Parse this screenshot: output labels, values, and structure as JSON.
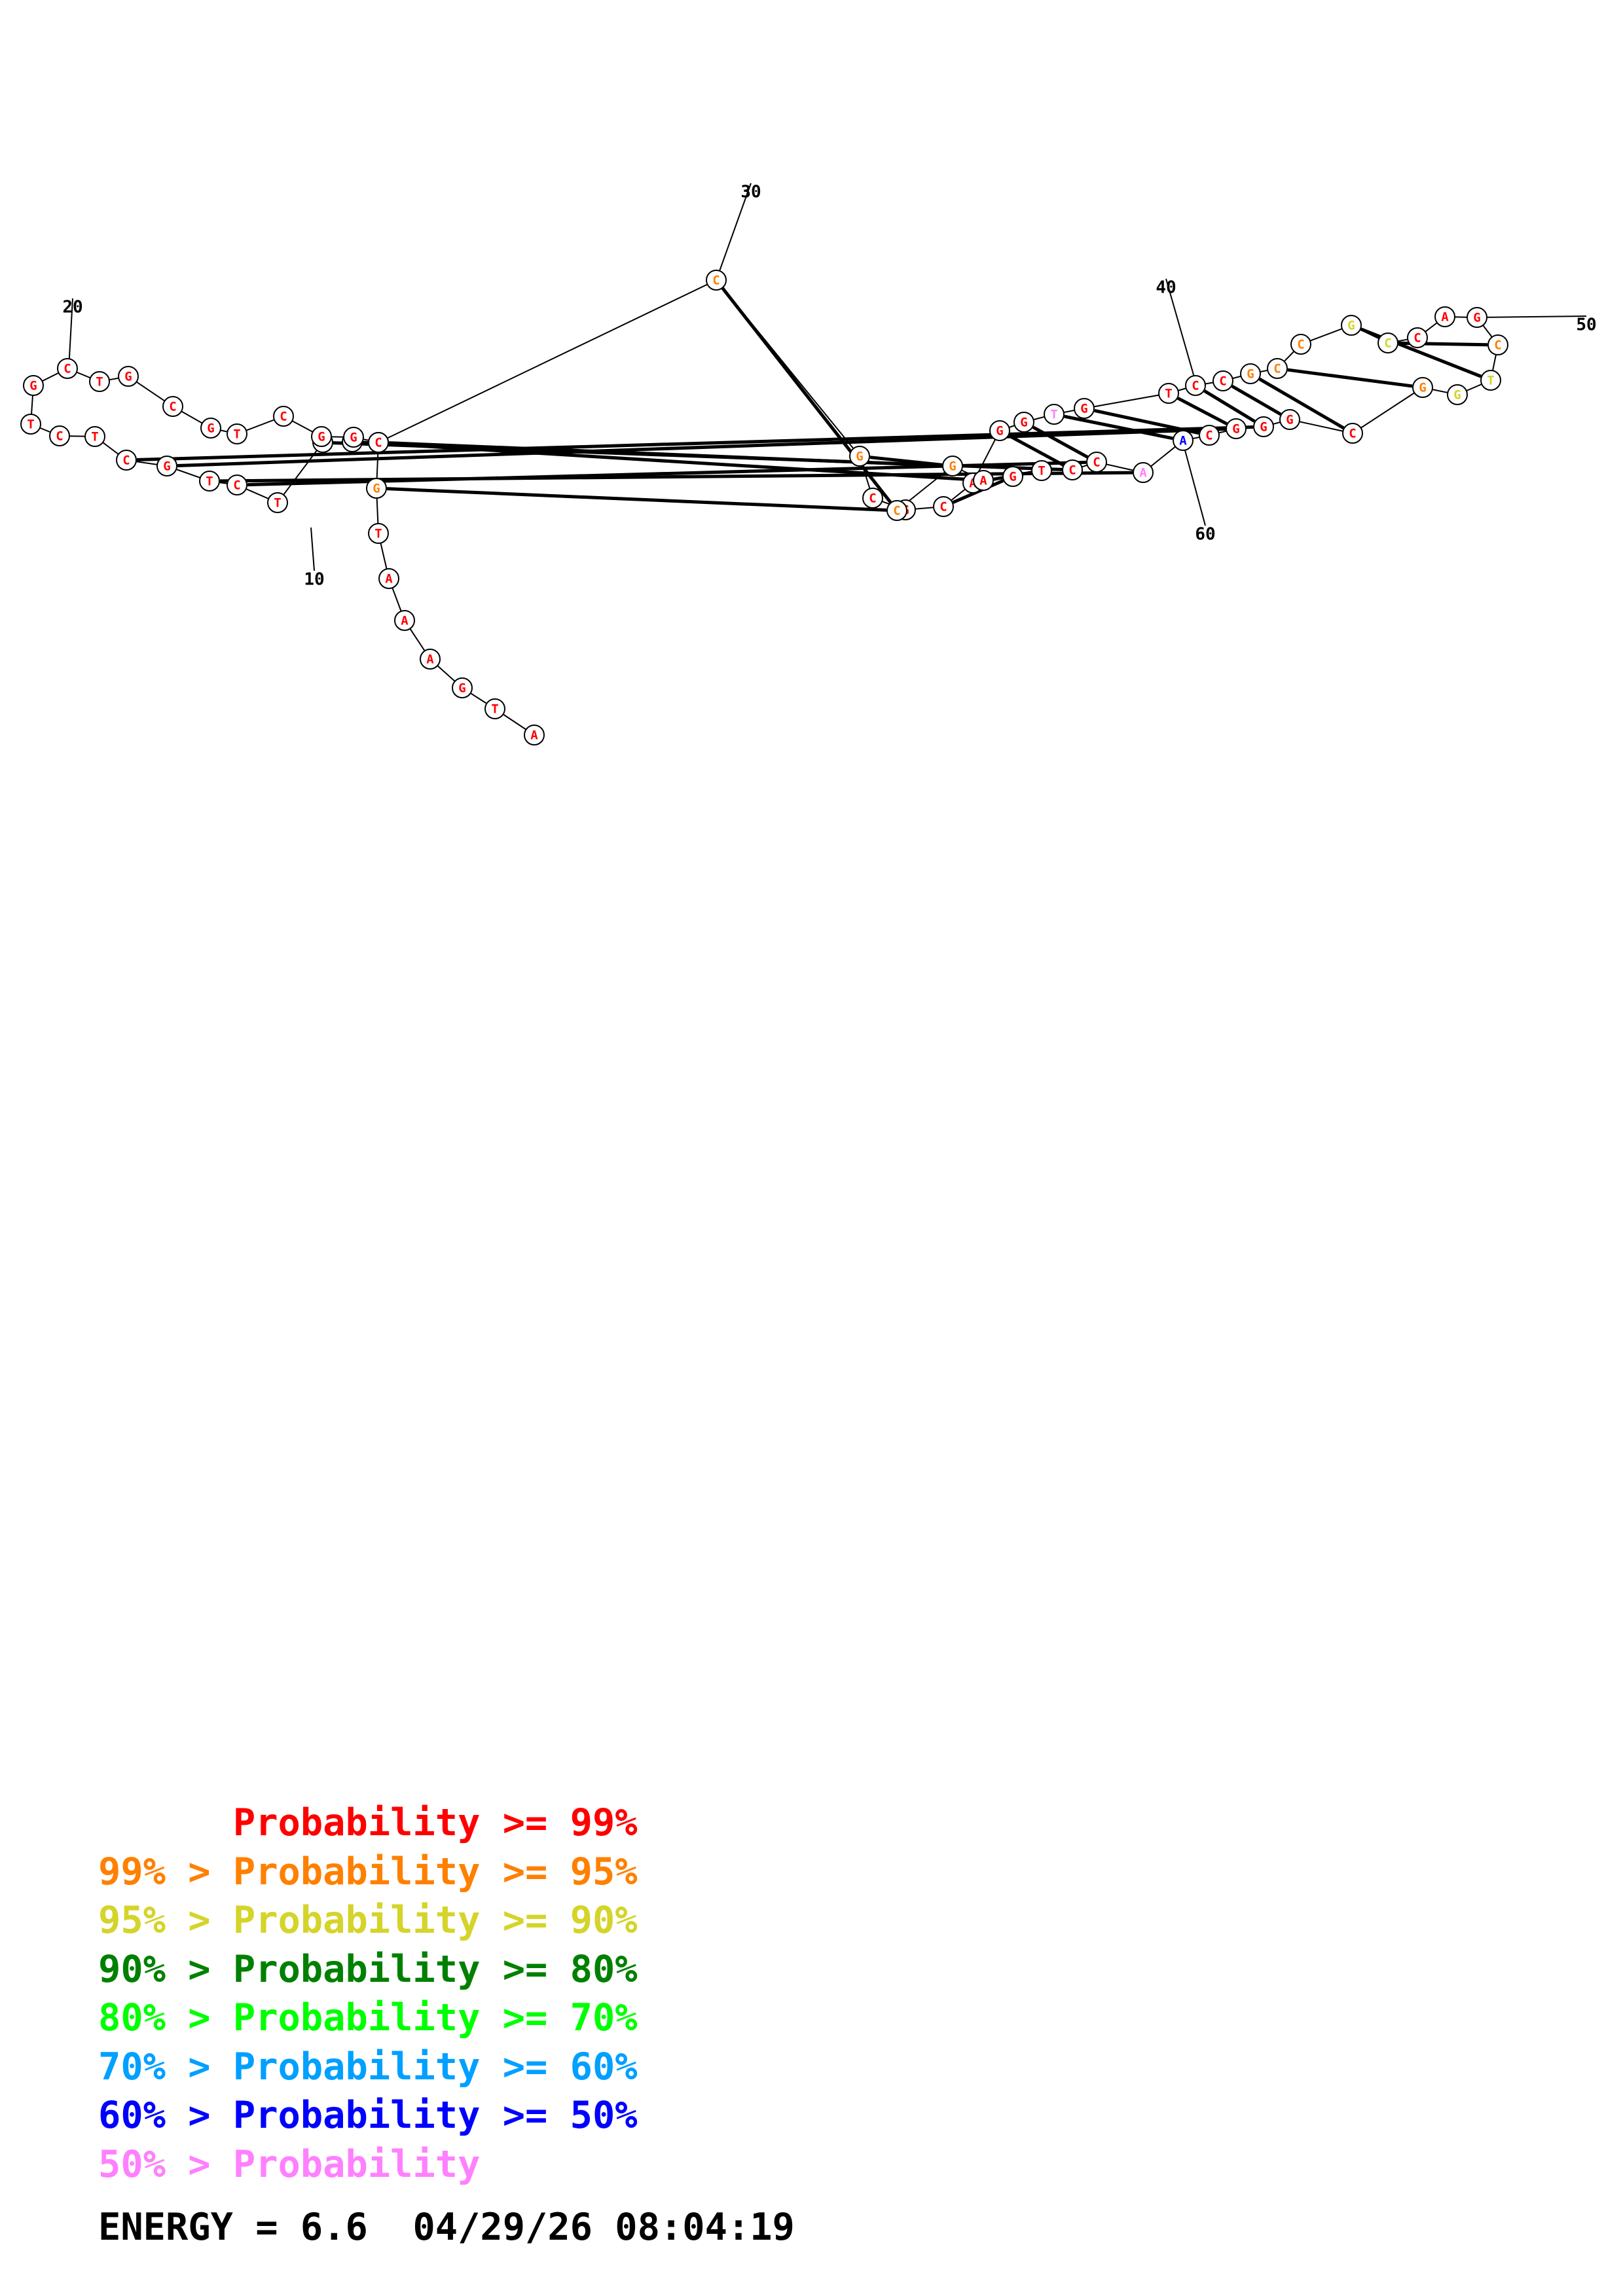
{
  "legend": [
    {
      "prefix": "",
      "label": "Probability >= 99%",
      "color": "#ff0000"
    },
    {
      "prefix": "99% > ",
      "label": "Probability >= 95%",
      "color": "#ff8000"
    },
    {
      "prefix": "95% > ",
      "label": "Probability >= 90%",
      "color": "#d4d42a"
    },
    {
      "prefix": "90% > ",
      "label": "Probability >= 80%",
      "color": "#008000"
    },
    {
      "prefix": "80% > ",
      "label": "Probability >= 70%",
      "color": "#00ff00"
    },
    {
      "prefix": "70% > ",
      "label": "Probability >= 60%",
      "color": "#00a0ff"
    },
    {
      "prefix": "60% > ",
      "label": "Probability >= 50%",
      "color": "#0000ff"
    },
    {
      "prefix": "50% > ",
      "label": "Probability",
      "color": "#ff80ff"
    }
  ],
  "footer": {
    "energy": "ENERGY = 6.6",
    "timestamp": "04/29/26 08:04:19"
  },
  "structure": {
    "sequence": [
      "A",
      "T",
      "G",
      "A",
      "A",
      "A",
      "T",
      "G",
      "C",
      "C",
      "G",
      "T",
      "C",
      "T",
      "G",
      "C",
      "T",
      "C",
      "T",
      "G",
      "C",
      "T",
      "G",
      "C",
      "G",
      "T",
      "C",
      "G",
      "G",
      "C",
      "C",
      "G",
      "C",
      "G",
      "C",
      "A",
      "G",
      "G",
      "T",
      "G",
      "T",
      "C",
      "C",
      "G",
      "C",
      "C",
      "G",
      "C",
      "C",
      "A",
      "G",
      "C",
      "T",
      "G",
      "G",
      "C",
      "G",
      "G",
      "G",
      "C",
      "A",
      "A",
      "C",
      "C",
      "T",
      "G",
      "A",
      "G",
      "C"
    ],
    "probability_class": [
      0,
      0,
      0,
      0,
      0,
      0,
      0,
      1,
      0,
      0,
      0,
      0,
      0,
      0,
      0,
      0,
      0,
      0,
      0,
      0,
      0,
      0,
      0,
      0,
      0,
      0,
      0,
      0,
      0,
      0,
      1,
      1,
      0,
      0,
      0,
      0,
      0,
      0,
      7,
      0,
      0,
      0,
      0,
      1,
      1,
      1,
      2,
      2,
      0,
      0,
      0,
      1,
      2,
      2,
      1,
      0,
      0,
      0,
      0,
      0,
      6,
      7,
      0,
      0,
      0,
      0,
      0,
      1,
      1
    ],
    "pairs": [
      [
        8,
        69
      ],
      [
        9,
        68
      ],
      [
        10,
        67
      ],
      [
        11,
        64
      ],
      [
        13,
        63
      ],
      [
        14,
        62
      ],
      [
        15,
        59
      ],
      [
        16,
        58
      ],
      [
        31,
        69
      ],
      [
        32,
        68
      ],
      [
        35,
        66
      ],
      [
        36,
        65
      ],
      [
        37,
        64
      ],
      [
        38,
        63
      ],
      [
        39,
        61
      ],
      [
        40,
        60
      ],
      [
        41,
        59
      ],
      [
        42,
        58
      ],
      [
        43,
        57
      ],
      [
        44,
        56
      ],
      [
        45,
        55
      ],
      [
        47,
        53
      ],
      [
        48,
        52
      ]
    ],
    "tick_labels": [
      {
        "index": 10,
        "label": "10"
      },
      {
        "index": 20,
        "label": "20"
      },
      {
        "index": 30,
        "label": "30"
      },
      {
        "index": 40,
        "label": "40"
      },
      {
        "index": 50,
        "label": "50"
      },
      {
        "index": 60,
        "label": "60"
      }
    ]
  }
}
